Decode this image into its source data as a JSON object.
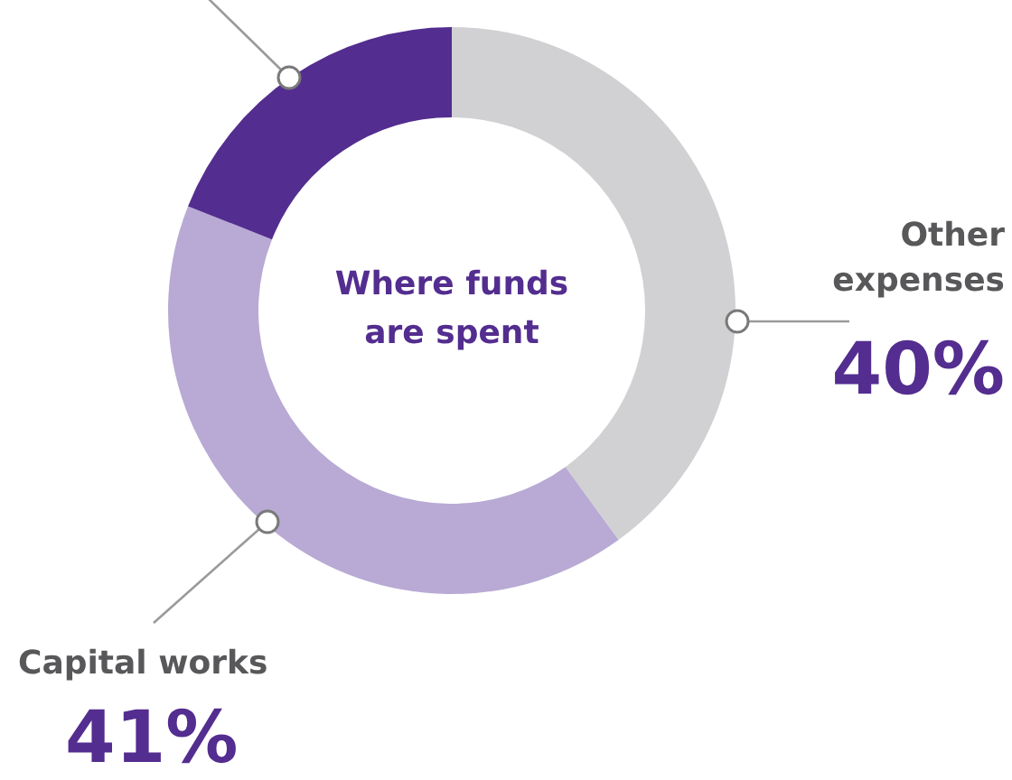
{
  "chart_data": {
    "type": "donut",
    "title": "Where funds\nare spent",
    "categories": [
      "Other expenses",
      "Capital works",
      null
    ],
    "values": [
      40,
      41,
      19
    ],
    "colors": [
      "#d1d1d3",
      "#b8aad4",
      "#532d8f"
    ],
    "value_labels": [
      "40%",
      "41%",
      null
    ],
    "legend": false
  }
}
